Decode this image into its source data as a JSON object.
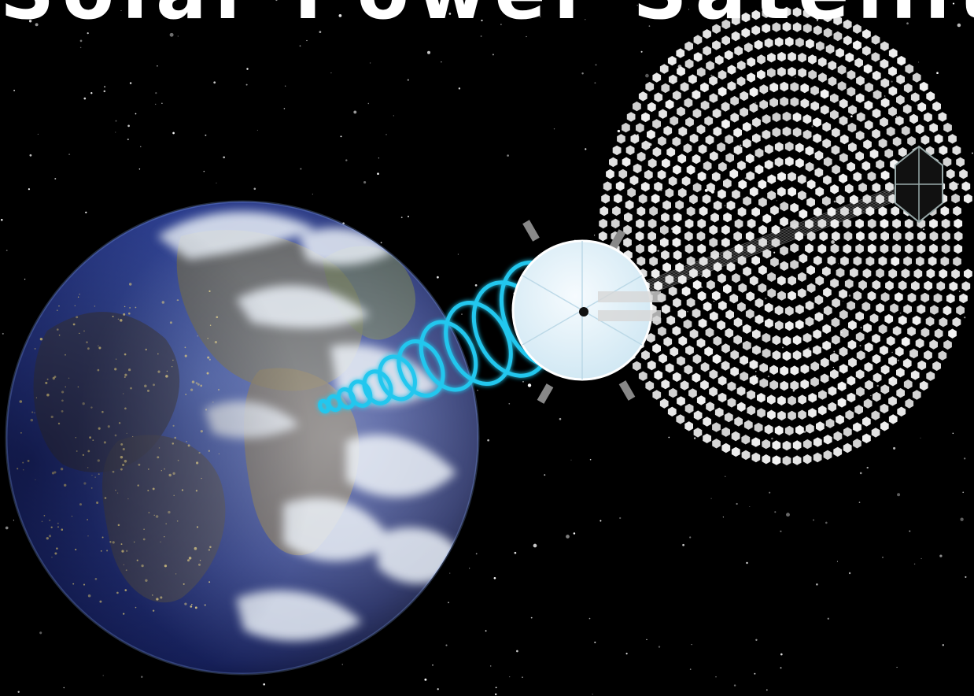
{
  "image": {
    "subject": "space-based solar power",
    "banner_text": "Solar Power Satellite"
  },
  "colors": {
    "space": "#000000",
    "beam": "#22c7ee",
    "ocean": "#1b2b76",
    "cloud": "#e6edf5",
    "land": "#6d6a52",
    "city_lights": "#f5df8c",
    "mirror": "#f2f2f2",
    "collector": "#e3f3fb"
  },
  "icons": [
    "earth-icon",
    "energy-beam-icon",
    "satellite-transmitter-icon",
    "mirror-array-icon",
    "star-icon"
  ]
}
